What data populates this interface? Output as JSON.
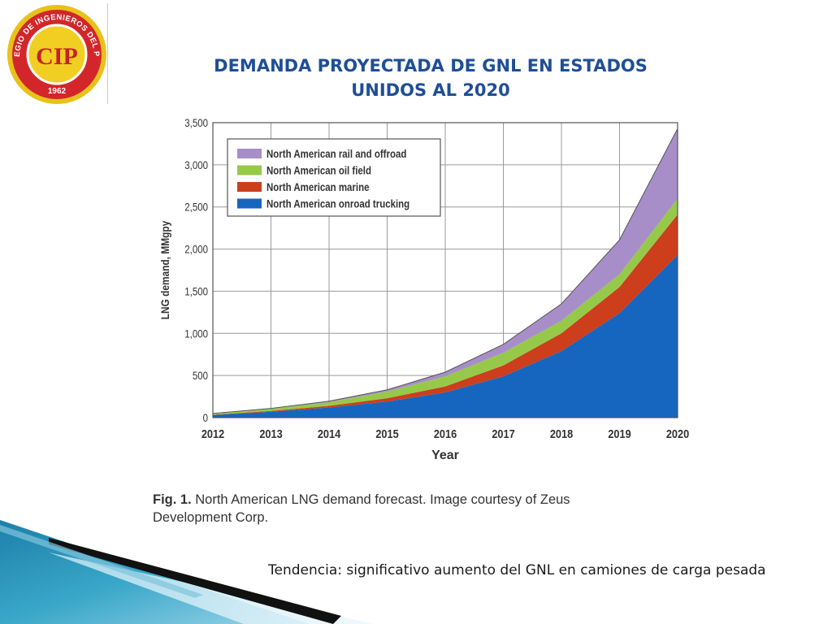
{
  "logo": {
    "ring_text": "COLEGIO DE INGENIEROS DEL PERU",
    "monogram": "CIP",
    "year": "1962"
  },
  "slide": {
    "title_line1": "DEMANDA PROYECTADA DE GNL EN ESTADOS",
    "title_line2": "UNIDOS AL 2020",
    "caption_label": "Fig. 1.",
    "caption_text": "North American LNG demand forecast. Image courtesy of Zeus Development Corp.",
    "note": "Tendencia: significativo aumento del GNL en camiones de carga pesada"
  },
  "colors": {
    "title": "#1f4e96",
    "trucking": "#1666c0",
    "marine": "#cc3e1c",
    "oilfield": "#96c94a",
    "rail": "#a78ec9"
  },
  "chart_data": {
    "type": "area",
    "stacked": true,
    "title": "",
    "xlabel": "Year",
    "ylabel": "LNG demand, MMgpy",
    "x": [
      "2012",
      "2013",
      "2014",
      "2015",
      "2016",
      "2017",
      "2018",
      "2019",
      "2020"
    ],
    "ylim": [
      0,
      3500
    ],
    "yticks": [
      0,
      500,
      1000,
      1500,
      2000,
      2500,
      3000,
      3500
    ],
    "ytick_labels": [
      "0",
      "500",
      "1,000",
      "1,500",
      "2,000",
      "2,500",
      "3,000",
      "3,500"
    ],
    "grid": true,
    "legend_position": "top-left",
    "series": [
      {
        "name": "North American onroad trucking",
        "color": "#1666c0",
        "values": [
          30,
          70,
          120,
          190,
          300,
          490,
          790,
          1240,
          1930
        ]
      },
      {
        "name": "North American marine",
        "color": "#cc3e1c",
        "values": [
          5,
          10,
          20,
          40,
          70,
          130,
          210,
          310,
          480
        ]
      },
      {
        "name": "North American oil field",
        "color": "#96c94a",
        "values": [
          10,
          25,
          45,
          80,
          120,
          150,
          150,
          150,
          190
        ]
      },
      {
        "name": "North American rail and offroad",
        "color": "#a78ec9",
        "values": [
          5,
          5,
          10,
          20,
          50,
          100,
          200,
          410,
          830
        ]
      }
    ],
    "legend_order": [
      "North American rail and offroad",
      "North American oil field",
      "North American marine",
      "North American onroad trucking"
    ]
  }
}
